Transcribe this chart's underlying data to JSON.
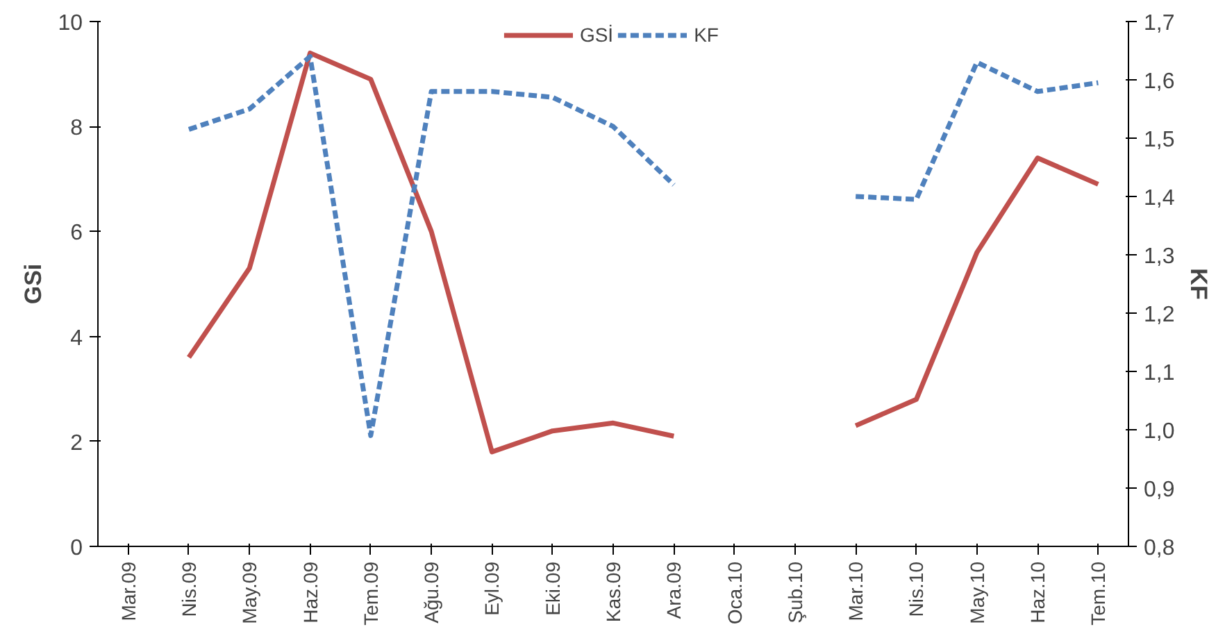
{
  "chart_data": {
    "type": "line",
    "ylabel": "GSi",
    "y2label": "KF",
    "categories": [
      "Mar.09",
      "Nis.09",
      "May.09",
      "Haz.09",
      "Tem.09",
      "Ağu.09",
      "Eyl.09",
      "Eki.09",
      "Kas.09",
      "Ara.09",
      "Oca.10",
      "Şub.10",
      "Mar.10",
      "Nis.10",
      "May.10",
      "Haz.10",
      "Tem.10"
    ],
    "series": [
      {
        "name": "GSİ",
        "color": "#c0504d",
        "line_style": "solid",
        "values": [
          null,
          3.6,
          5.3,
          9.4,
          8.9,
          6.0,
          1.8,
          2.2,
          2.35,
          2.1,
          null,
          null,
          2.3,
          2.8,
          5.6,
          7.4,
          6.9
        ]
      },
      {
        "name": "KF",
        "color": "#4f81bd",
        "line_style": "dashed",
        "axis": "y2",
        "values": [
          null,
          1.515,
          1.55,
          1.64,
          0.99,
          1.58,
          1.58,
          1.57,
          1.52,
          1.42,
          null,
          null,
          1.4,
          1.395,
          1.63,
          1.58,
          1.595
        ]
      }
    ],
    "ylim": [
      0,
      10
    ],
    "yticks": [
      0,
      2,
      4,
      6,
      8,
      10
    ],
    "y2lim": [
      0.8,
      1.7
    ],
    "y2ticks": [
      {
        "value": 0.8,
        "label": "0,8"
      },
      {
        "value": 0.9,
        "label": "0,9"
      },
      {
        "value": 1.0,
        "label": "1,0"
      },
      {
        "value": 1.1,
        "label": "1,1"
      },
      {
        "value": 1.2,
        "label": "1,2"
      },
      {
        "value": 1.3,
        "label": "1,3"
      },
      {
        "value": 1.4,
        "label": "1,4"
      },
      {
        "value": 1.5,
        "label": "1,5"
      },
      {
        "value": 1.6,
        "label": "1,6"
      },
      {
        "value": 1.7,
        "label": "1,7"
      }
    ],
    "grid": false,
    "legend": "top",
    "marker": "none"
  }
}
